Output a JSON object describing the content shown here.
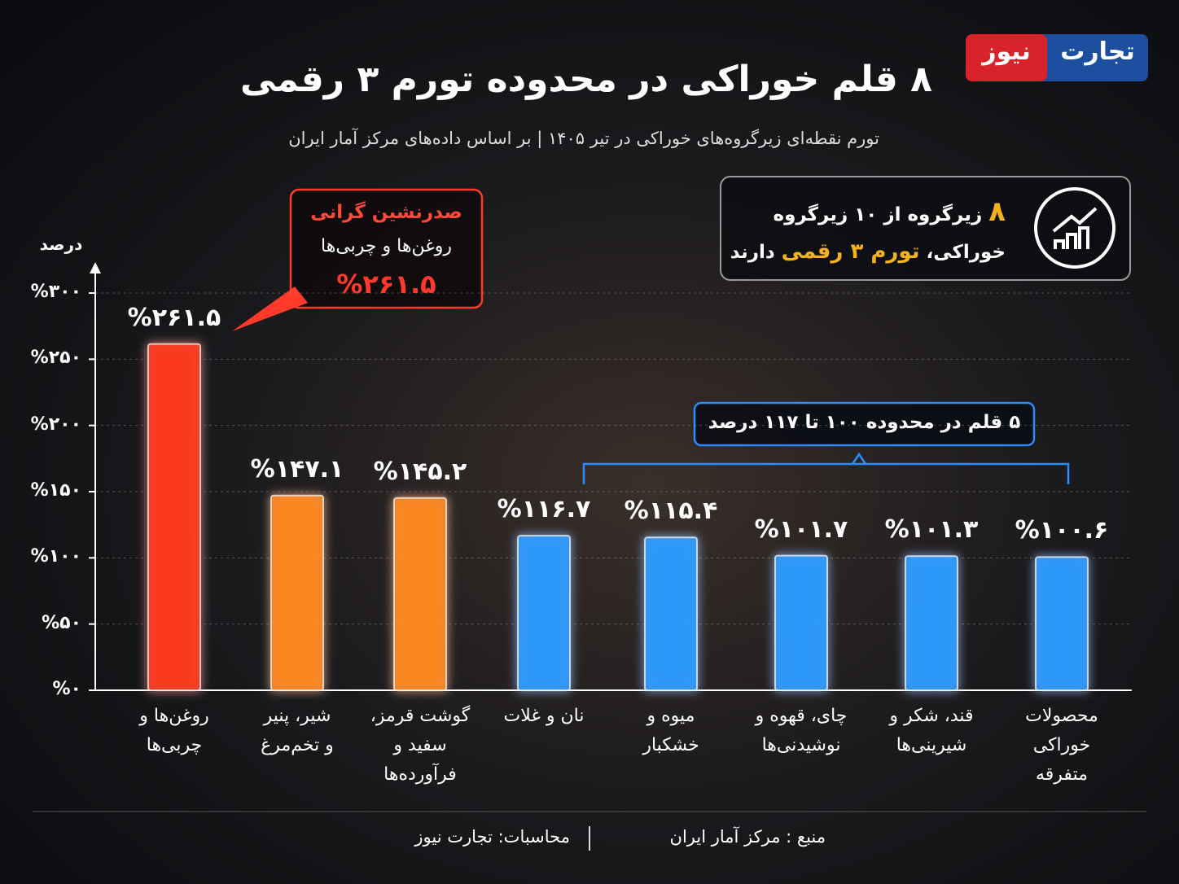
{
  "logo": {
    "part1": "تجارت",
    "part2": "نیوز"
  },
  "chart_data": {
    "type": "bar",
    "title": "۸ قلم خوراکی در محدوده تورم ۳ رقمی",
    "subtitle": "تورم نقطه‌ای زیرگروه‌های خوراکی در تیر ۱۴۰۵ | بر اساس داده‌های مرکز آمار ایران",
    "y_label": "درصد",
    "categories": [
      "روغن‌ها و\nچربی‌ها",
      "شیر، پنیر\nو تخم‌مرغ",
      "گوشت قرمز،\nسفید و\nفرآورده‌ها",
      "نان و غلات",
      "میوه و\nخشکبار",
      "چای، قهوه و\nنوشیدنی‌ها",
      "قند، شکر و\nشیرینی‌ها",
      "محصولات\nخوراکی\nمتفرقه"
    ],
    "values": [
      261.5,
      147.1,
      145.2,
      116.7,
      115.4,
      101.7,
      101.3,
      100.6
    ],
    "value_labels": [
      "%۲۶۱.۵",
      "%۱۴۷.۱",
      "%۱۴۵.۲",
      "%۱۱۶.۷",
      "%۱۱۵.۴",
      "%۱۰۱.۷",
      "%۱۰۱.۳",
      "%۱۰۰.۶"
    ],
    "colors": [
      "#ff3a1a",
      "#ff8a1c",
      "#ff8a1c",
      "#2b9bff",
      "#2b9bff",
      "#2b9bff",
      "#2b9bff",
      "#2b9bff"
    ],
    "ylim": [
      0,
      300
    ],
    "yticks": [
      {
        "value": 0,
        "label": "%۰"
      },
      {
        "value": 50,
        "label": "%۵۰"
      },
      {
        "value": 100,
        "label": "%۱۰۰"
      },
      {
        "value": 150,
        "label": "%۱۵۰"
      },
      {
        "value": 200,
        "label": "%۲۰۰"
      },
      {
        "value": 250,
        "label": "%۲۵۰"
      },
      {
        "value": 300,
        "label": "%۳۰۰"
      }
    ],
    "grid": true,
    "annotations": {
      "top_title": "صدرنشین گرانی",
      "top_name": "روغن‌ها و چربی‌ها",
      "top_value": "%۲۶۱.۵",
      "range_note": "۵ قلم در محدوده ۱۰۰ تا ۱۱۷ درصد",
      "info_number": "۸",
      "info_line1": "زیرگروه از ۱۰ زیرگروه",
      "info_line2a": "خوراکی،",
      "info_highlight": "تورم ۳ رقمی",
      "info_line2b": "دارند"
    }
  },
  "footer": {
    "source": "منبع : مرکز آمار ایران",
    "calc": "محاسبات: تجارت نیوز"
  }
}
